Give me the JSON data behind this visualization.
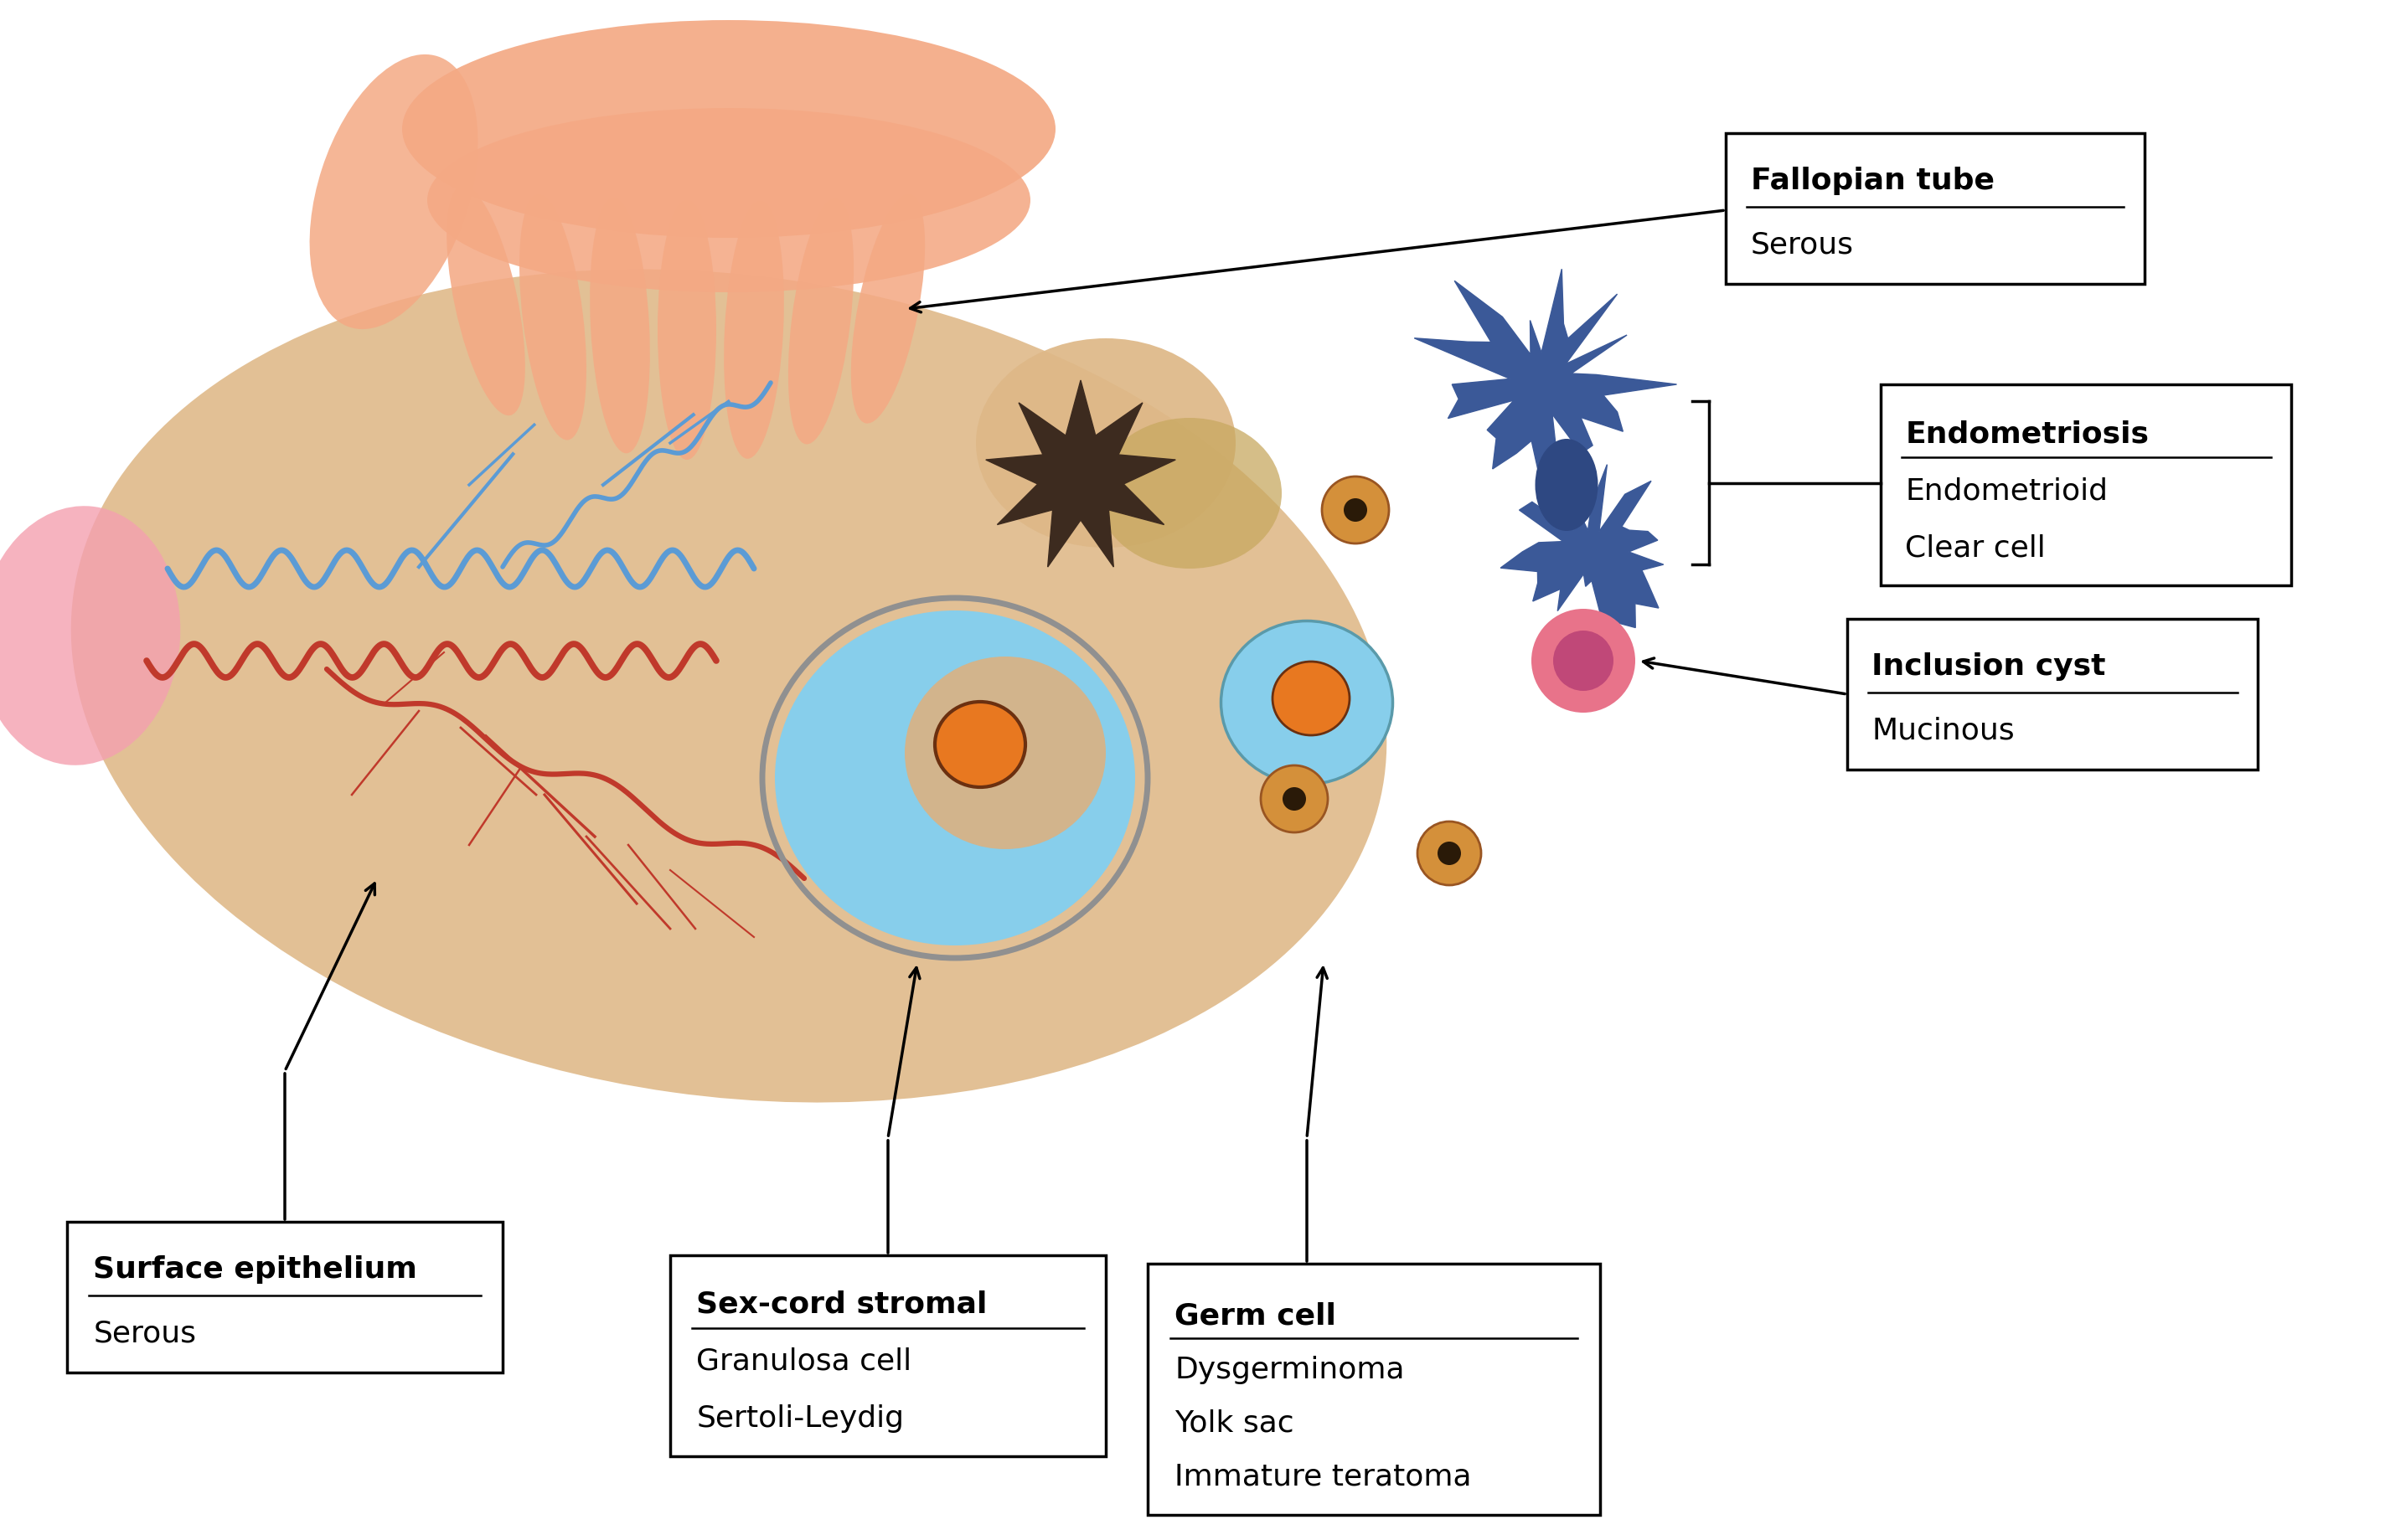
{
  "bg_color": "#ffffff",
  "ovary_color": "#DEB887",
  "hand_color": "#F4A984",
  "blue_vessel_color": "#5B9BD5",
  "red_vessel_color": "#C0392B",
  "pink_tube_color": "#F4A0B0",
  "endometriosis_color": "#3B5998",
  "dark_spot_color": "#3D2B1F",
  "cyst_blue": "#87CEEB",
  "cyst_tan": "#D2B48C",
  "orange_core": "#E87820",
  "inclusion_pink_outer": "#E8738A",
  "inclusion_pink_inner": "#C04878",
  "dot_outer": "#D4903A",
  "dot_inner": "#2A1A08",
  "labels": {
    "fallopian": [
      "Fallopian tube",
      "Serous"
    ],
    "endometriosis": [
      "Endometriosis",
      "Endometrioid",
      "Clear cell"
    ],
    "inclusion": [
      "Inclusion cyst",
      "Mucinous"
    ],
    "surface": [
      "Surface epithelium",
      "Serous"
    ],
    "sexcord": [
      "Sex-cord stromal",
      "Granulosa cell",
      "Sertoli-Leydig"
    ],
    "germcell": [
      "Germ cell",
      "Dysgerminoma",
      "Yolk sac",
      "Immature teratoma"
    ]
  }
}
